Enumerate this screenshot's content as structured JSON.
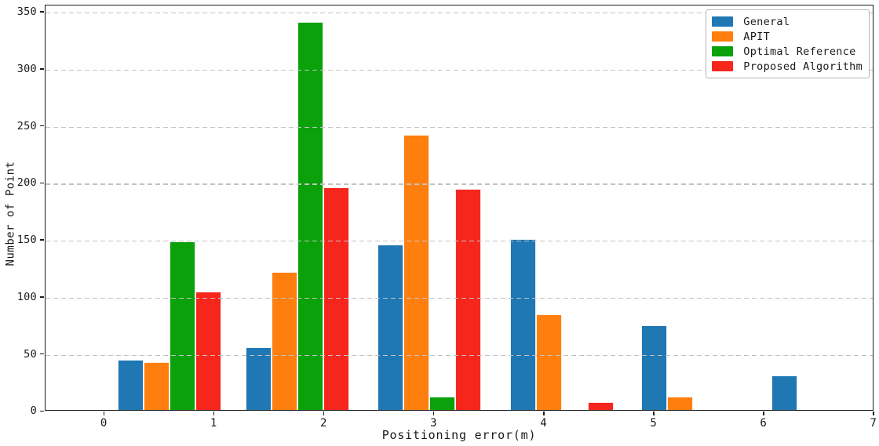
{
  "chart_data": {
    "type": "bar",
    "title": "",
    "xlabel": "Positioning error(m)",
    "ylabel": "Number of Point",
    "x_ticks": [
      0,
      1,
      2,
      3,
      4,
      5,
      6,
      7
    ],
    "y_ticks": [
      0,
      50,
      100,
      150,
      200,
      250,
      300,
      350
    ],
    "xlim": [
      -0.54,
      7
    ],
    "ylim": [
      0,
      356
    ],
    "grid": {
      "axis": "y",
      "style": "dashed",
      "color": "#c3c3c3",
      "drawn_over_bars": true
    },
    "legend_position": "upper-right",
    "bar_width": 0.2355,
    "group_x_starts": [
      0.121,
      1.282,
      2.48,
      3.69,
      4.877,
      6.066
    ],
    "series": [
      {
        "name": "General",
        "color": "#1f77b4",
        "values": [
          44,
          55,
          145,
          150,
          74,
          30
        ]
      },
      {
        "name": "APIT",
        "color": "#ff7f0e",
        "values": [
          42,
          121,
          241,
          84,
          12,
          0
        ]
      },
      {
        "name": "Optimal Reference",
        "color": "#0aa10a",
        "values": [
          148,
          340,
          12,
          0,
          0,
          0
        ]
      },
      {
        "name": "Proposed Algorithm",
        "color": "#f7261d",
        "values": [
          104,
          195,
          194,
          7,
          0,
          0
        ]
      }
    ]
  }
}
